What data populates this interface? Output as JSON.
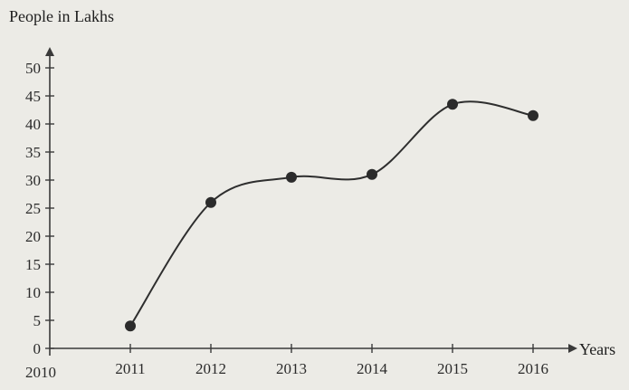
{
  "chart_data": {
    "type": "line",
    "ylabel": "People in Lakhs",
    "xlabel": "Years",
    "origin_x_label": "2010",
    "x": [
      "2011",
      "2012",
      "2013",
      "2014",
      "2015",
      "2016"
    ],
    "series": [
      {
        "values": [
          4,
          26,
          30.5,
          31,
          43.5,
          41.5
        ]
      }
    ],
    "ylim": [
      0,
      50
    ],
    "yticks": [
      0,
      5,
      10,
      15,
      20,
      25,
      30,
      35,
      40,
      45,
      50
    ],
    "line_style": "smooth curve with filled circular markers",
    "grid": false,
    "line_color": "#2e2e2e",
    "background_color": "#ecebe6"
  }
}
